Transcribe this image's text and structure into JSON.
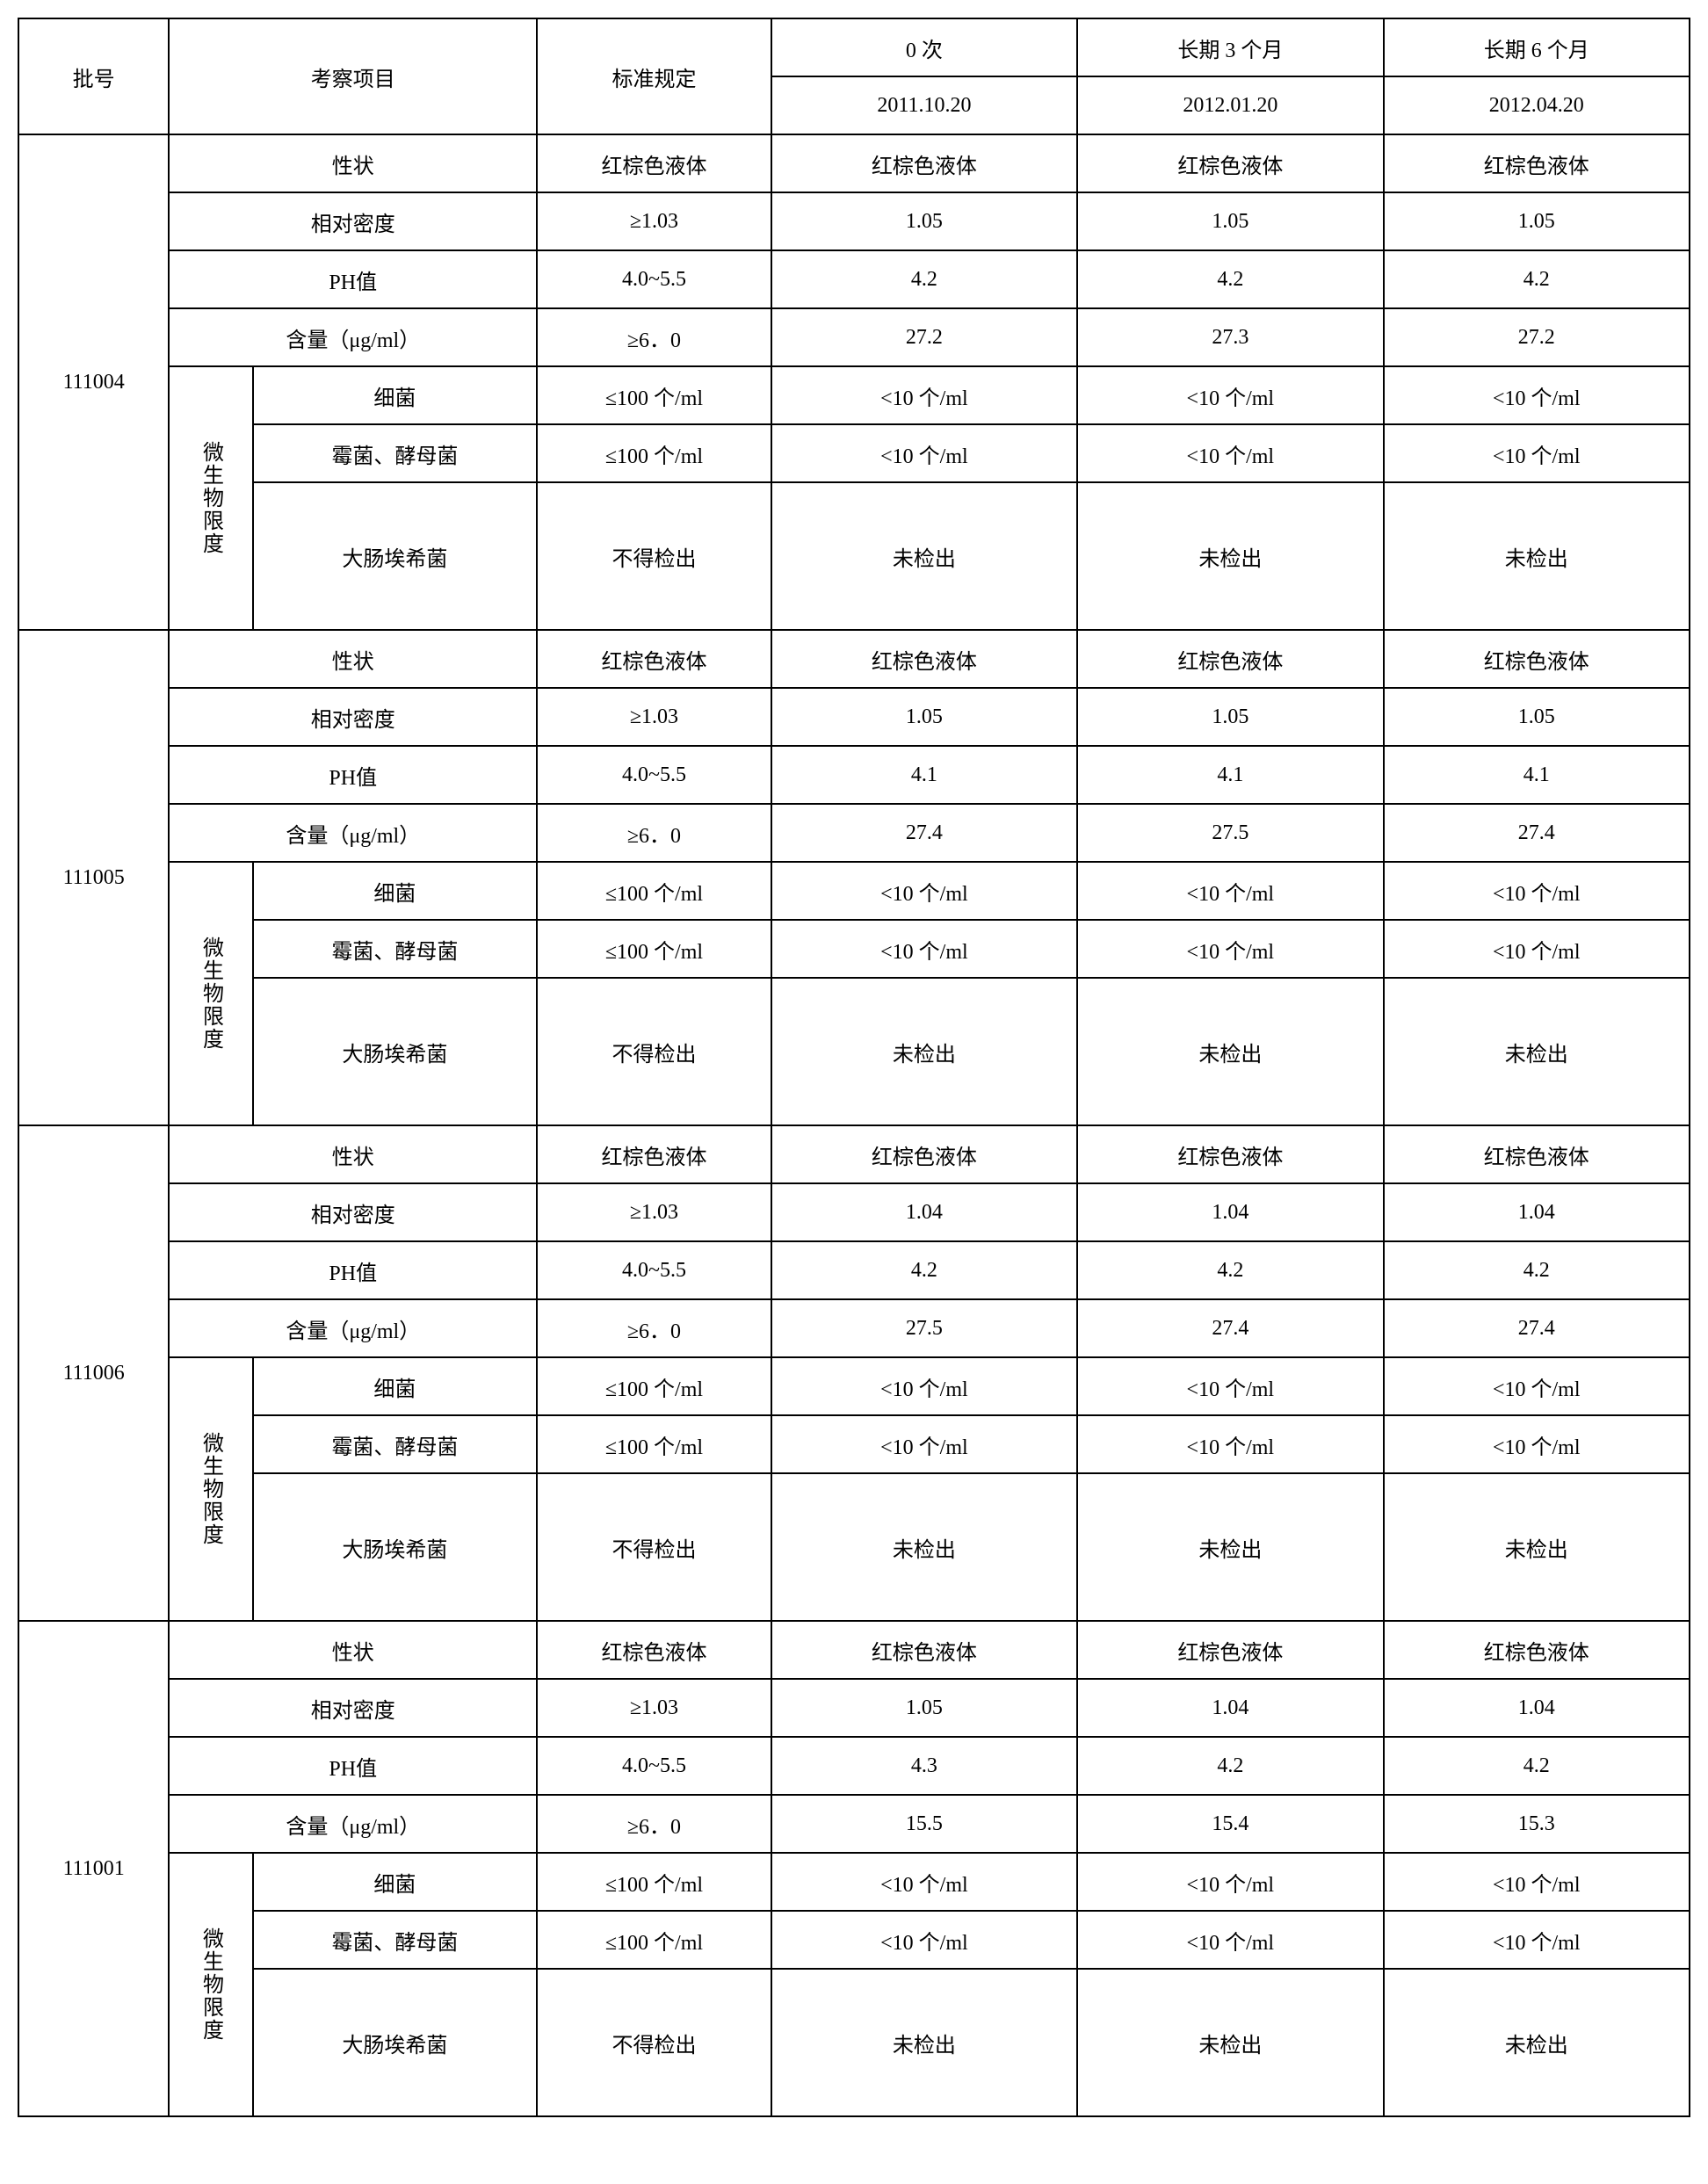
{
  "header": {
    "batch_no": "批号",
    "inspect_item": "考察项目",
    "standard": "标准规定",
    "zero_times": "0 次",
    "long3": "长期 3 个月",
    "long6": "长期 6 个月",
    "date0": "2011.10.20",
    "date3": "2012.01.20",
    "date6": "2012.04.20"
  },
  "labels": {
    "appearance": "性状",
    "density": "相对密度",
    "ph": "PH值",
    "content": "含量（μg/ml）",
    "bacteria": "细菌",
    "mold_yeast": "霉菌、酵母菌",
    "ecoli": "大肠埃希菌",
    "micro_limit": "微生物限度"
  },
  "std": {
    "appearance": "红棕色液体",
    "density": "≥1.03",
    "ph": "4.0~5.5",
    "content": "≥6．0",
    "bacteria": "≤100 个/ml",
    "mold_yeast": "≤100 个/ml",
    "ecoli": "不得检出"
  },
  "common": {
    "lt10": "<10 个/ml",
    "not_detected": "未检出",
    "redbrown": "红棕色液体"
  },
  "batches": [
    {
      "id": "111004",
      "density": [
        "1.05",
        "1.05",
        "1.05"
      ],
      "ph": [
        "4.2",
        "4.2",
        "4.2"
      ],
      "content": [
        "27.2",
        "27.3",
        "27.2"
      ]
    },
    {
      "id": "111005",
      "density": [
        "1.05",
        "1.05",
        "1.05"
      ],
      "ph": [
        "4.1",
        "4.1",
        "4.1"
      ],
      "content": [
        "27.4",
        "27.5",
        "27.4"
      ]
    },
    {
      "id": "111006",
      "density": [
        "1.04",
        "1.04",
        "1.04"
      ],
      "ph": [
        "4.2",
        "4.2",
        "4.2"
      ],
      "content": [
        "27.5",
        "27.4",
        "27.4"
      ]
    },
    {
      "id": "111001",
      "density": [
        "1.05",
        "1.04",
        "1.04"
      ],
      "ph": [
        "4.3",
        "4.2",
        "4.2"
      ],
      "content": [
        "15.5",
        "15.4",
        "15.3"
      ]
    }
  ]
}
